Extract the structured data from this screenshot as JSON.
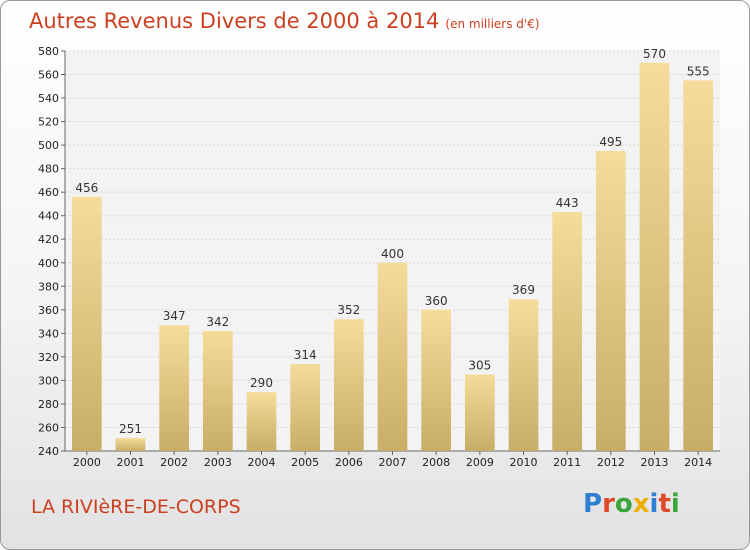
{
  "header": {
    "title": "Autres Revenus Divers de 2000 à 2014",
    "unit": "(en milliers d'€)"
  },
  "footer": {
    "place": "LA RIVIèRE-DE-CORPS",
    "logo": "Proxiti"
  },
  "colors": {
    "title": "#cc3f1f",
    "bar_top": "#f6dc9a",
    "bar_bottom": "#c8ad67"
  },
  "chart_data": {
    "type": "bar",
    "title": "Autres Revenus Divers de 2000 à 2014",
    "subtitle": "(en milliers d'€)",
    "xlabel": "",
    "ylabel": "",
    "categories": [
      "2000",
      "2001",
      "2002",
      "2003",
      "2004",
      "2005",
      "2006",
      "2007",
      "2008",
      "2009",
      "2010",
      "2011",
      "2012",
      "2013",
      "2014"
    ],
    "values": [
      456,
      251,
      347,
      342,
      290,
      314,
      352,
      400,
      360,
      305,
      369,
      443,
      495,
      570,
      555
    ],
    "ylim": [
      240,
      580
    ],
    "yticks": [
      240,
      260,
      280,
      300,
      320,
      340,
      360,
      380,
      400,
      420,
      440,
      460,
      480,
      500,
      520,
      540,
      560,
      580
    ],
    "grid": true,
    "data_labels": true
  }
}
